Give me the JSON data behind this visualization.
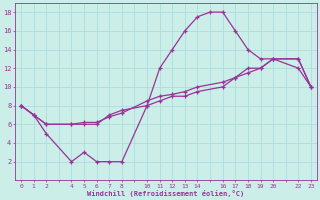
{
  "xlabel": "Windchill (Refroidissement éolien,°C)",
  "background_color": "#cceee8",
  "grid_color": "#aadddd",
  "line_color": "#993399",
  "xlim": [
    -0.5,
    23.5
  ],
  "ylim": [
    0,
    19
  ],
  "xticks": [
    0,
    1,
    2,
    4,
    5,
    6,
    7,
    8,
    10,
    11,
    12,
    13,
    14,
    16,
    17,
    18,
    19,
    20,
    22,
    23
  ],
  "yticks": [
    2,
    4,
    6,
    8,
    10,
    12,
    14,
    16,
    18
  ],
  "series": [
    {
      "x": [
        0,
        1,
        2,
        4,
        5,
        6,
        7,
        8,
        10,
        11,
        12,
        13,
        14,
        15,
        16,
        17,
        18,
        19,
        20,
        22,
        23
      ],
      "y": [
        8,
        7,
        5,
        2,
        3,
        2,
        2,
        2,
        8,
        12,
        14,
        16,
        17.5,
        18,
        18,
        16,
        14,
        13,
        13,
        12,
        10
      ]
    },
    {
      "x": [
        0,
        1,
        2,
        4,
        5,
        6,
        7,
        8,
        10,
        11,
        12,
        13,
        14,
        16,
        17,
        18,
        19,
        20,
        22,
        23
      ],
      "y": [
        8,
        7,
        6,
        6,
        6.2,
        6.2,
        6.8,
        7.2,
        8.5,
        9,
        9.2,
        9.5,
        10,
        10.5,
        11,
        12,
        12,
        13,
        13,
        10
      ]
    },
    {
      "x": [
        0,
        1,
        2,
        4,
        5,
        6,
        7,
        8,
        10,
        11,
        12,
        13,
        14,
        16,
        17,
        18,
        19,
        20,
        22,
        23
      ],
      "y": [
        8,
        7,
        6,
        6,
        6,
        6,
        7,
        7.5,
        8,
        8.5,
        9,
        9,
        9.5,
        10,
        11,
        11.5,
        12,
        13,
        13,
        10
      ]
    }
  ]
}
